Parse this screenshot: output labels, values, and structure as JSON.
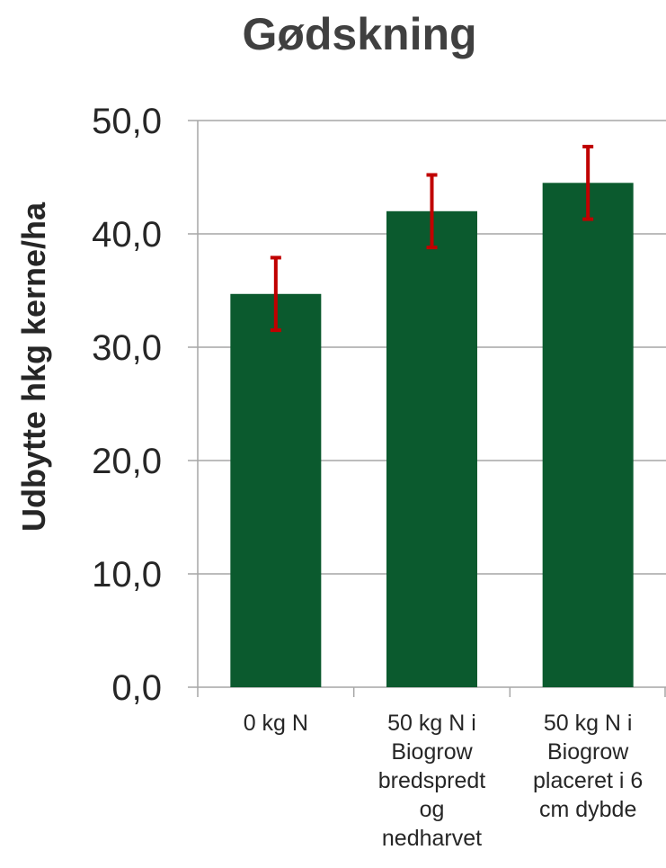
{
  "chart_data": {
    "type": "bar",
    "title": "Gødskning",
    "ylabel": "Udbytte hkg kerne/ha",
    "xlabel": "",
    "ylim": [
      0,
      50
    ],
    "yticks": [
      "0,0",
      "10,0",
      "20,0",
      "30,0",
      "40,0",
      "50,0"
    ],
    "ytick_values": [
      0,
      10,
      20,
      30,
      40,
      50
    ],
    "grid": true,
    "categories": [
      [
        "0 kg N"
      ],
      [
        "50 kg N i",
        "Biogrow",
        "bredspredt",
        "og",
        "nedharvet"
      ],
      [
        "50 kg N i",
        "Biogrow",
        "placeret i 6",
        "cm dybde"
      ]
    ],
    "values": [
      34.7,
      42.0,
      44.5
    ],
    "error_low": [
      31.5,
      38.8,
      41.3
    ],
    "error_high": [
      37.9,
      45.2,
      47.7
    ],
    "colors": {
      "bar": "#0b5a2e",
      "error": "#c00000",
      "grid": "#a6a6a6",
      "axis": "#a6a6a6",
      "text": "#262626",
      "title": "#404040"
    }
  }
}
